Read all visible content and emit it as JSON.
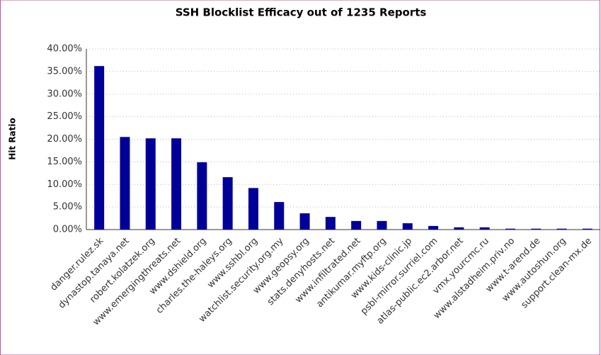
{
  "chart_data": {
    "type": "bar",
    "title": "SSH Blocklist Efficacy out of 1235 Reports",
    "y_label": "Hit Ratio",
    "categories": [
      "danger.rulez.sk",
      "dynastop.tanaya.net",
      "robert.kolatzek.org",
      "www.emergingthreats.net",
      "www.dshield.org",
      "charles.the-haleys.org",
      "www.sshbl.org",
      "watchlist.security.org.my",
      "www.geopsy.org",
      "stats.denyhosts.net",
      "www.infiltrated.net",
      "antikumar.myftp.org",
      "www.kids-clinic.jp",
      "psbl-mirror.surriel.com",
      "atlas-public.ec2.arbor.net",
      "vmx.yourcmc.ru",
      "www.alstadheim.priv.no",
      "www.t-arend.de",
      "www.autoshun.org",
      "support.clean-mx.de"
    ],
    "values": [
      36.2,
      20.5,
      20.2,
      20.2,
      14.9,
      11.6,
      9.2,
      6.1,
      3.6,
      2.8,
      1.9,
      1.9,
      1.4,
      0.8,
      0.5,
      0.5,
      0.2,
      0.2,
      0.2,
      0.2
    ],
    "color": "#000099",
    "ylim": [
      0,
      40
    ],
    "yticks": [
      {
        "value": 0,
        "label": "0.00%"
      },
      {
        "value": 5,
        "label": "5.00%"
      },
      {
        "value": 10,
        "label": "10.00%"
      },
      {
        "value": 15,
        "label": "15.00%"
      },
      {
        "value": 20,
        "label": "20.00%"
      },
      {
        "value": 25,
        "label": "25.00%"
      },
      {
        "value": 30,
        "label": "30.00%"
      },
      {
        "value": 35,
        "label": "35.00%"
      },
      {
        "value": 40,
        "label": "40.00%"
      }
    ],
    "grid": true
  }
}
